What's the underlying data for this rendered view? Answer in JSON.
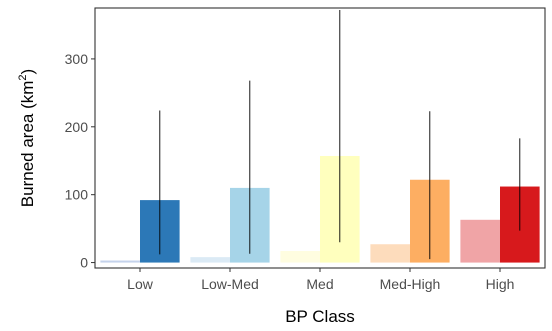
{
  "chart_data": {
    "type": "bar",
    "xlabel": "BP Class",
    "ylabel_prefix": "Burned area (km",
    "ylabel_superscript": "2",
    "ylabel_suffix": ")",
    "ylim": [
      -8,
      375
    ],
    "yticks": [
      0,
      100,
      200,
      300
    ],
    "grid": false,
    "legend": "none",
    "categories": [
      "Low",
      "Low-Med",
      "Med",
      "Med-High",
      "High"
    ],
    "series": [
      {
        "values": [
          3,
          8,
          17,
          27,
          63
        ],
        "colors": [
          "#c5d3ec",
          "#dbeaf5",
          "#fffde0",
          "#fddcbc",
          "#f0a4a6"
        ],
        "error_low": [
          null,
          null,
          null,
          null,
          null
        ],
        "error_high": [
          null,
          null,
          null,
          null,
          null
        ]
      },
      {
        "values": [
          92,
          110,
          157,
          122,
          112
        ],
        "colors": [
          "#2c78b7",
          "#a6d4e8",
          "#ffffbe",
          "#fdae62",
          "#d7191c"
        ],
        "error_low": [
          12,
          13,
          30,
          5,
          47
        ],
        "error_high": [
          224,
          268,
          372,
          223,
          183
        ]
      }
    ]
  }
}
